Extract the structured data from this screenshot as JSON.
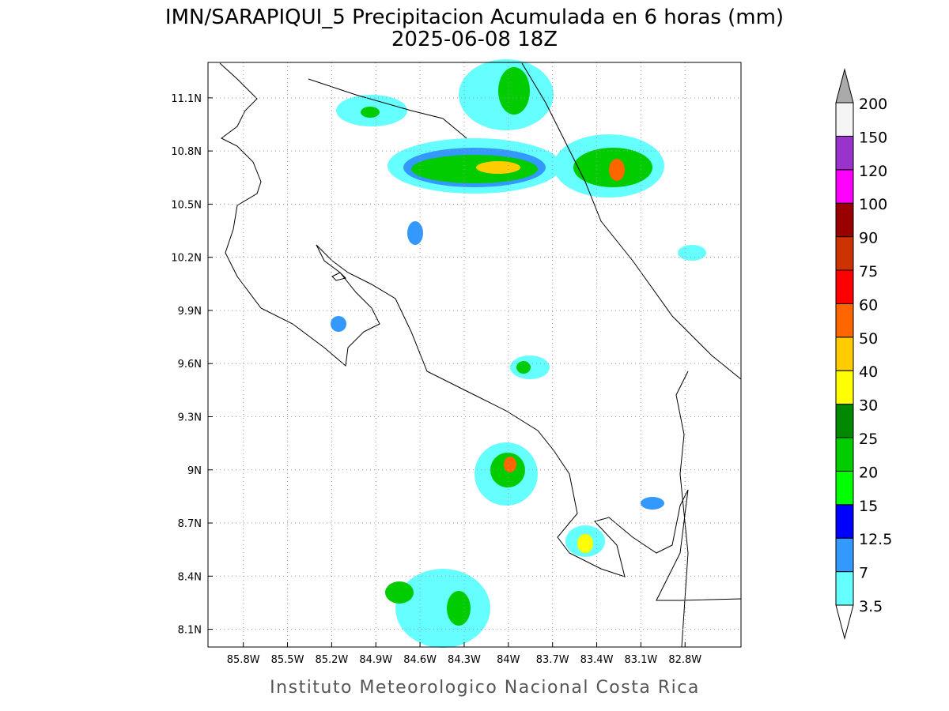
{
  "map": {
    "title": "IMN/SARAPIQUI_5 Precipitacion Acumulada en 6 horas (mm)",
    "subtitle": "2025-06-08 18Z",
    "footer": "Instituto Meteorologico Nacional Costa Rica",
    "xlim": [
      -86.04,
      -82.42
    ],
    "ylim": [
      8.0,
      11.3
    ],
    "xticks": [
      {
        "value": -85.8,
        "label": "85.8W"
      },
      {
        "value": -85.5,
        "label": "85.5W"
      },
      {
        "value": -85.2,
        "label": "85.2W"
      },
      {
        "value": -84.9,
        "label": "84.9W"
      },
      {
        "value": -84.6,
        "label": "84.6W"
      },
      {
        "value": -84.3,
        "label": "84.3W"
      },
      {
        "value": -84.0,
        "label": "84W"
      },
      {
        "value": -83.7,
        "label": "83.7W"
      },
      {
        "value": -83.4,
        "label": "83.4W"
      },
      {
        "value": -83.1,
        "label": "83.1W"
      },
      {
        "value": -82.8,
        "label": "82.8W"
      }
    ],
    "yticks": [
      {
        "value": 11.1,
        "label": "11.1N"
      },
      {
        "value": 10.8,
        "label": "10.8N"
      },
      {
        "value": 10.5,
        "label": "10.5N"
      },
      {
        "value": 10.2,
        "label": "10.2N"
      },
      {
        "value": 9.9,
        "label": "9.9N"
      },
      {
        "value": 9.6,
        "label": "9.6N"
      },
      {
        "value": 9.3,
        "label": "9.3N"
      },
      {
        "value": 9.0,
        "label": "9N"
      },
      {
        "value": 8.7,
        "label": "8.7N"
      },
      {
        "value": 8.4,
        "label": "8.4N"
      },
      {
        "value": 8.1,
        "label": "8.1N"
      }
    ],
    "grid": true,
    "colorbar": {
      "levels": [
        3.5,
        7,
        12.5,
        15,
        20,
        25,
        30,
        40,
        50,
        60,
        75,
        90,
        100,
        120,
        150,
        200
      ],
      "colors": [
        "#66ffff",
        "#3399ff",
        "#0000ff",
        "#00ff00",
        "#00cc00",
        "#008800",
        "#ffff00",
        "#ffcc00",
        "#ff6600",
        "#ff0000",
        "#cc3300",
        "#990000",
        "#ff00ff",
        "#9933cc",
        "#f5f5f5"
      ],
      "over_color": "#aaaaaa",
      "under_color": "#ffffff"
    }
  }
}
